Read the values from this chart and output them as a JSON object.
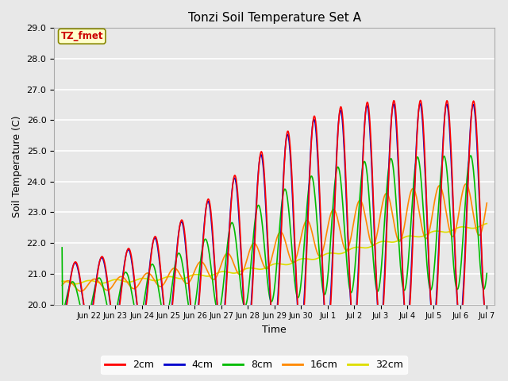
{
  "title": "Tonzi Soil Temperature Set A",
  "xlabel": "Time",
  "ylabel": "Soil Temperature (C)",
  "ylim": [
    20.0,
    29.0
  ],
  "annotation_text": "TZ_fmet",
  "annotation_color": "#cc0000",
  "annotation_bg": "#ffffcc",
  "annotation_border": "#888800",
  "bg_color": "#e8e8e8",
  "plot_bg": "#e8e8e8",
  "grid_color": "#ffffff",
  "line_colors": {
    "2cm": "#ff0000",
    "4cm": "#0000cc",
    "8cm": "#00bb00",
    "16cm": "#ff8800",
    "32cm": "#dddd00"
  },
  "line_width": 1.2,
  "tick_labels": [
    "Jun 22",
    "Jun 23",
    "Jun 24",
    "Jun 25",
    "Jun 26",
    "Jun 27",
    "Jun 28",
    "Jun 29",
    "Jun 30",
    "Jul 1",
    "Jul 2",
    "Jul 3",
    "Jul 4",
    "Jul 5",
    "Jul 6",
    "Jul 7"
  ]
}
